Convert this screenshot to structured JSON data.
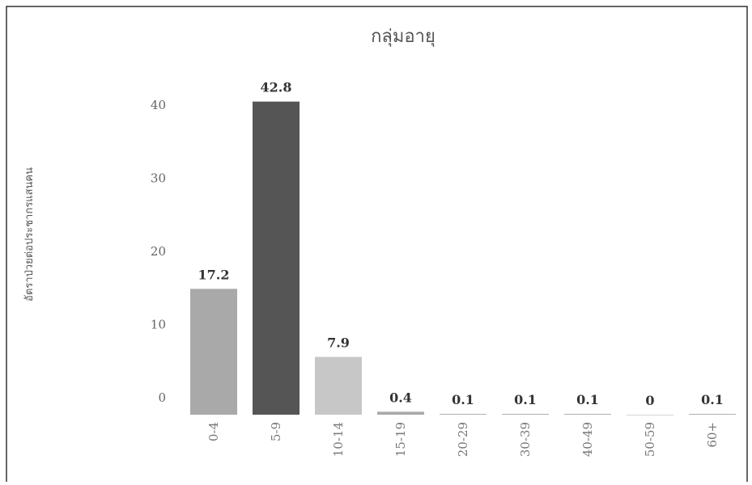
{
  "chart_data": {
    "type": "bar",
    "title": "กลุ่มอายุ",
    "ylabel": "อัตราป่วยต่อประชากรแสนคน",
    "xlabel": "",
    "categories": [
      "0-4",
      "5-9",
      "10-14",
      "15-19",
      "20-29",
      "30-39",
      "40-49",
      "50-59",
      "60+"
    ],
    "values": [
      17.2,
      42.8,
      7.9,
      0.4,
      0.1,
      0.1,
      0.1,
      0,
      0.1
    ],
    "value_labels": [
      "17.2",
      "42.8",
      "7.9",
      "0.4",
      "0.1",
      "0.1",
      "0.1",
      "0",
      "0.1"
    ],
    "yticks": [
      "0",
      "10",
      "20",
      "30",
      "40"
    ],
    "ylim": [
      0,
      43
    ],
    "grid": false,
    "legend": "none",
    "colors": [
      "#a9a9a9",
      "#555555",
      "#c7c7c7",
      "#a9a9a9",
      "#a9a9a9",
      "#a9a9a9",
      "#a9a9a9",
      "#a9a9a9",
      "#a9a9a9"
    ],
    "border_color": "#000000"
  }
}
